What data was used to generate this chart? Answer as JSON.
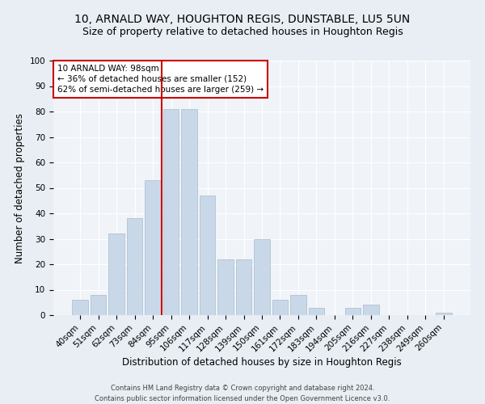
{
  "title1": "10, ARNALD WAY, HOUGHTON REGIS, DUNSTABLE, LU5 5UN",
  "title2": "Size of property relative to detached houses in Houghton Regis",
  "xlabel": "Distribution of detached houses by size in Houghton Regis",
  "ylabel": "Number of detached properties",
  "footnote1": "Contains HM Land Registry data © Crown copyright and database right 2024.",
  "footnote2": "Contains public sector information licensed under the Open Government Licence v3.0.",
  "categories": [
    "40sqm",
    "51sqm",
    "62sqm",
    "73sqm",
    "84sqm",
    "95sqm",
    "106sqm",
    "117sqm",
    "128sqm",
    "139sqm",
    "150sqm",
    "161sqm",
    "172sqm",
    "183sqm",
    "194sqm",
    "205sqm",
    "216sqm",
    "227sqm",
    "238sqm",
    "249sqm",
    "260sqm"
  ],
  "values": [
    6,
    8,
    32,
    38,
    53,
    81,
    81,
    47,
    22,
    22,
    30,
    6,
    8,
    3,
    0,
    3,
    4,
    0,
    0,
    0,
    1
  ],
  "bar_color": "#c8d8e8",
  "bar_edge_color": "#aabbcc",
  "vline_color": "#cc0000",
  "annotation_text": "10 ARNALD WAY: 98sqm\n← 36% of detached houses are smaller (152)\n62% of semi-detached houses are larger (259) →",
  "annotation_box_color": "white",
  "annotation_box_edge": "#cc0000",
  "ylim": [
    0,
    100
  ],
  "yticks": [
    0,
    10,
    20,
    30,
    40,
    50,
    60,
    70,
    80,
    90,
    100
  ],
  "bg_color": "#e8eef4",
  "plot_bg_color": "#f0f4f8",
  "title_fontsize": 10,
  "subtitle_fontsize": 9,
  "axis_label_fontsize": 8.5,
  "tick_fontsize": 7.5,
  "footnote_fontsize": 6,
  "annotation_fontsize": 7.5
}
